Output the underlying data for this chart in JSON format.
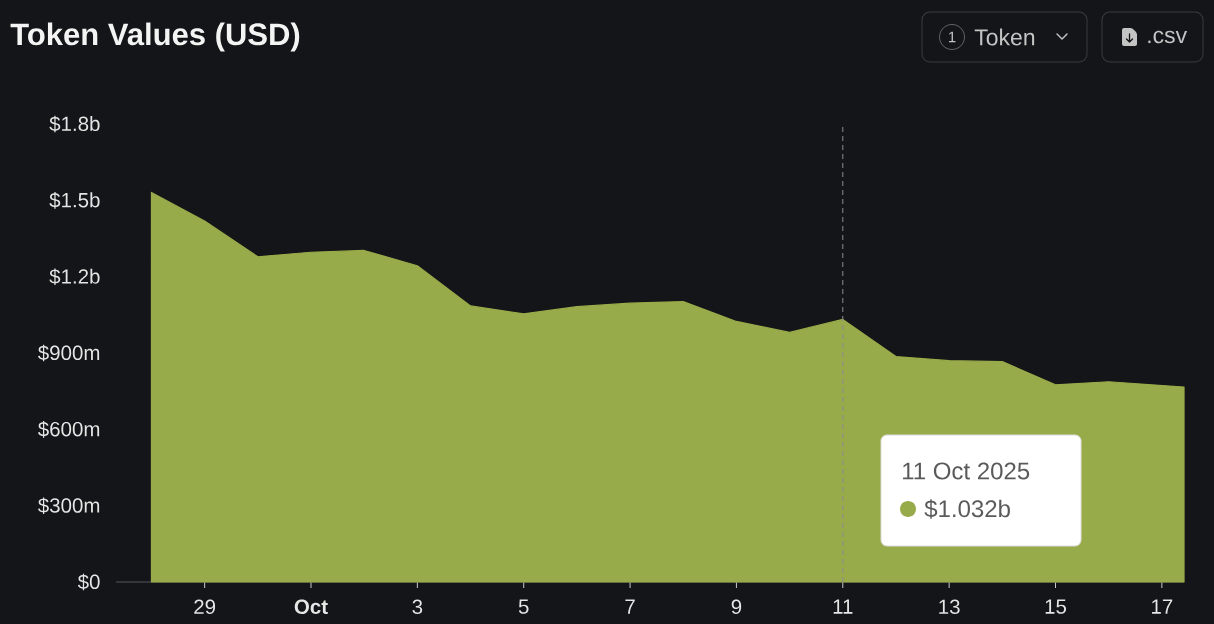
{
  "chart_data": {
    "type": "area",
    "title": "Token Values (USD)",
    "x": [
      "2025-09-28",
      "2025-09-29",
      "2025-09-30",
      "2025-10-01",
      "2025-10-02",
      "2025-10-03",
      "2025-10-04",
      "2025-10-05",
      "2025-10-06",
      "2025-10-07",
      "2025-10-08",
      "2025-10-09",
      "2025-10-10",
      "2025-10-11",
      "2025-10-12",
      "2025-10-13",
      "2025-10-14",
      "2025-10-15",
      "2025-10-16",
      "2025-10-17T10:00"
    ],
    "values": [
      1531000000,
      1419000000,
      1278000000,
      1296000000,
      1303000000,
      1243000000,
      1085000000,
      1054000000,
      1082000000,
      1096000000,
      1102000000,
      1024000000,
      981000000,
      1032000000,
      886000000,
      870000000,
      866000000,
      775000000,
      787000000,
      766000000
    ],
    "color": "#98ab4a",
    "xlim": [
      "2025-09-27T08:00",
      "2025-10-17T10:00"
    ],
    "xticks": [
      {
        "value": "2025-09-29",
        "label": "29"
      },
      {
        "value": "2025-10-01",
        "label": "Oct"
      },
      {
        "value": "2025-10-03",
        "label": "3"
      },
      {
        "value": "2025-10-05",
        "label": "5"
      },
      {
        "value": "2025-10-07",
        "label": "7"
      },
      {
        "value": "2025-10-09",
        "label": "9"
      },
      {
        "value": "2025-10-11",
        "label": "11"
      },
      {
        "value": "2025-10-13",
        "label": "13"
      },
      {
        "value": "2025-10-15",
        "label": "15"
      },
      {
        "value": "2025-10-17",
        "label": "17"
      }
    ],
    "ylim": [
      0,
      1800000000
    ],
    "yticks": [
      {
        "value": 0,
        "label": "$0"
      },
      {
        "value": 300000000,
        "label": "$300m"
      },
      {
        "value": 600000000,
        "label": "$600m"
      },
      {
        "value": 900000000,
        "label": "$900m"
      },
      {
        "value": 1200000000,
        "label": "$1.2b"
      },
      {
        "value": 1500000000,
        "label": "$1.5b"
      },
      {
        "value": 1800000000,
        "label": "$1.8b"
      }
    ],
    "ref_lines": [
      {
        "axis": "x",
        "value": "2025-10-11",
        "color": "#8c8c8c",
        "line_style": "dashed"
      }
    ],
    "annotations": [
      "11 Oct 2025",
      "$1.032b",
      "1",
      "Token",
      ".csv"
    ]
  }
}
